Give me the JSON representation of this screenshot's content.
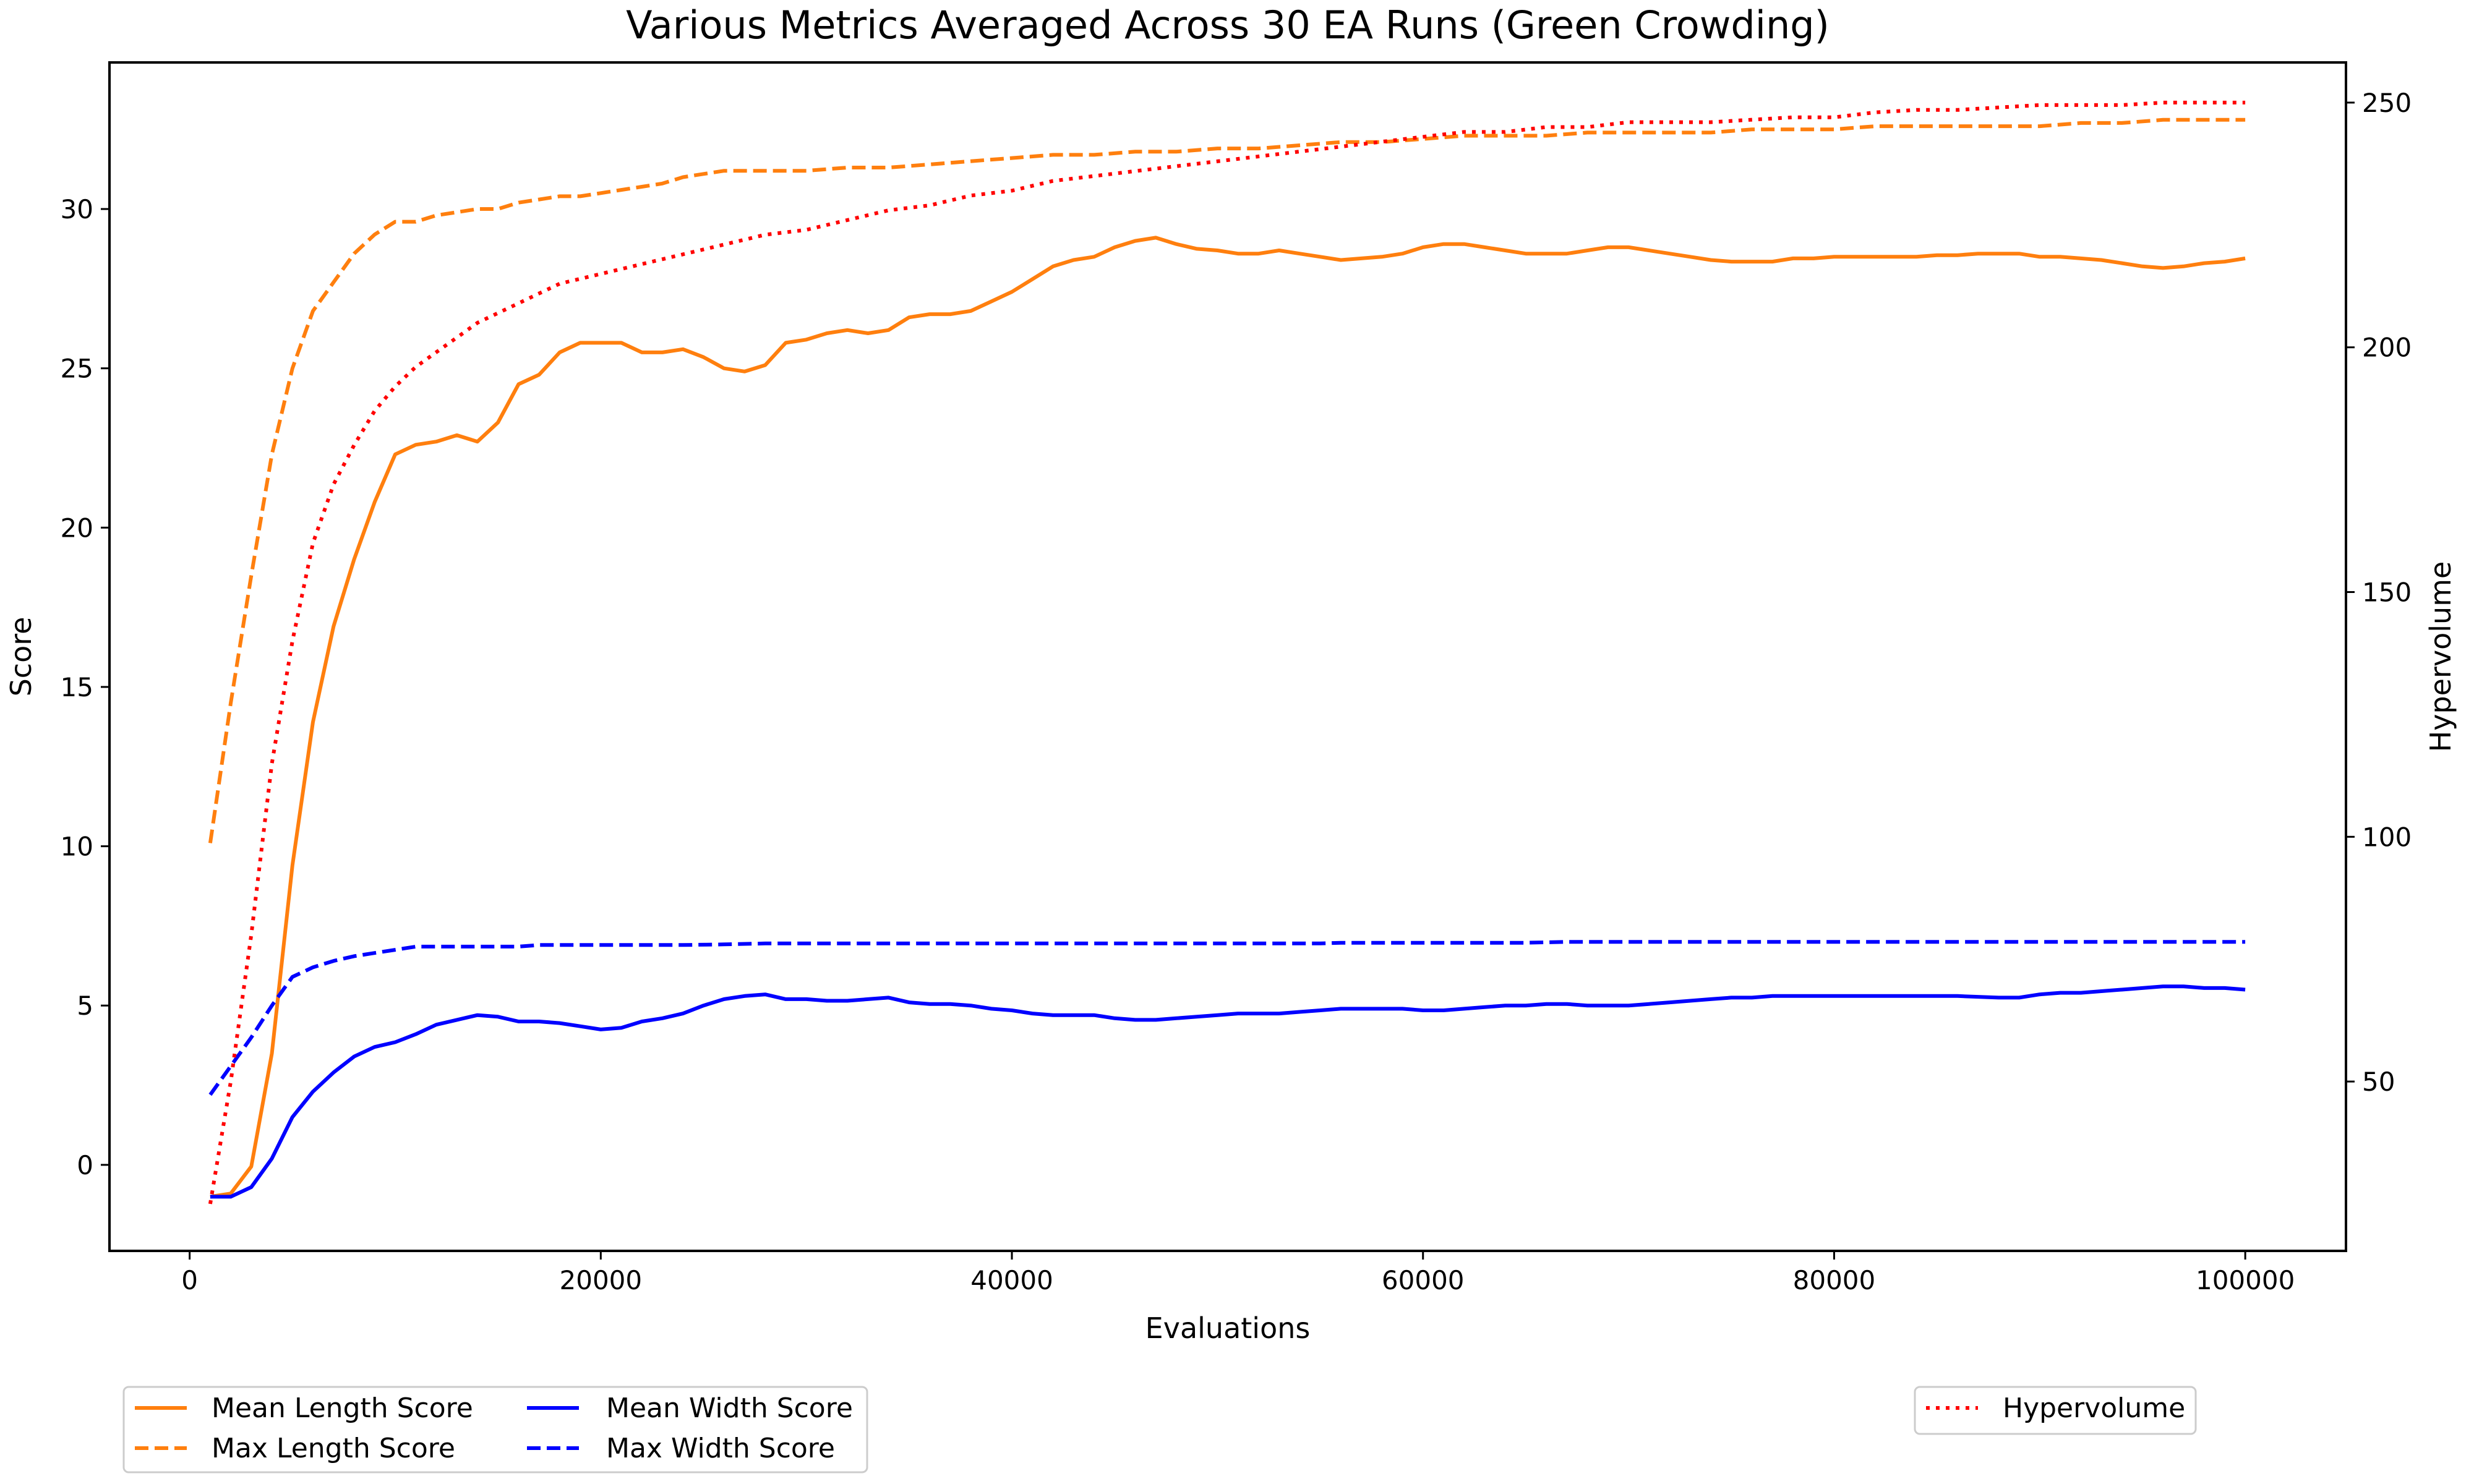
{
  "chart_data": {
    "type": "line",
    "title": "Various Metrics Averaged Across 30 EA Runs (Green Crowding)",
    "xlabel": "Evaluations",
    "ylabel": "Score",
    "y2label": "Hypervolume",
    "xlim": [
      -3900,
      104900
    ],
    "ylim": [
      -2.7,
      34.6
    ],
    "y2lim": [
      15.4,
      258.2
    ],
    "xticks": [
      0,
      20000,
      40000,
      60000,
      80000,
      100000
    ],
    "yticks": [
      0,
      5,
      10,
      15,
      20,
      25,
      30
    ],
    "y2ticks": [
      50,
      100,
      150,
      200,
      250
    ],
    "grid": false,
    "legends": [
      {
        "placement": "lower-left, below axes",
        "entries": [
          "Mean Length Score",
          "Max Length Score",
          "Mean Width Score",
          "Max Width Score"
        ]
      },
      {
        "placement": "lower-right, below axes",
        "entries": [
          "Hypervolume"
        ]
      }
    ],
    "series": [
      {
        "name": "Mean Length Score",
        "axis": "left",
        "color": "#ff7f0e",
        "dash": "solid",
        "x": [
          1000,
          2000,
          3000,
          4000,
          5000,
          6000,
          7000,
          8000,
          9000,
          10000,
          11000,
          12000,
          13000,
          14000,
          15000,
          16000,
          17000,
          18000,
          19000,
          20000,
          21000,
          22000,
          23000,
          24000,
          25000,
          26000,
          27000,
          28000,
          29000,
          30000,
          31000,
          32000,
          33000,
          34000,
          35000,
          36000,
          37000,
          38000,
          39000,
          40000,
          41000,
          42000,
          43000,
          44000,
          45000,
          46000,
          47000,
          48000,
          49000,
          50000,
          51000,
          52000,
          53000,
          54000,
          55000,
          56000,
          57000,
          58000,
          59000,
          60000,
          61000,
          62000,
          63000,
          64000,
          65000,
          66000,
          67000,
          68000,
          69000,
          70000,
          71000,
          72000,
          73000,
          74000,
          75000,
          76000,
          77000,
          78000,
          79000,
          80000,
          81000,
          82000,
          83000,
          84000,
          85000,
          86000,
          87000,
          88000,
          89000,
          90000,
          91000,
          92000,
          93000,
          94000,
          95000,
          96000,
          97000,
          98000,
          99000,
          100000
        ],
        "values": [
          -1.0,
          -0.9,
          -0.05,
          3.5,
          9.4,
          13.9,
          16.9,
          19.0,
          20.8,
          22.3,
          22.6,
          22.7,
          22.9,
          22.7,
          23.3,
          24.5,
          24.8,
          25.5,
          25.8,
          25.8,
          25.8,
          25.5,
          25.5,
          25.6,
          25.35,
          25.0,
          24.9,
          25.1,
          25.8,
          25.9,
          26.1,
          26.2,
          26.1,
          26.2,
          26.6,
          26.7,
          26.7,
          26.8,
          27.1,
          27.4,
          27.8,
          28.2,
          28.4,
          28.5,
          28.8,
          29.0,
          29.1,
          28.9,
          28.75,
          28.7,
          28.6,
          28.6,
          28.7,
          28.6,
          28.5,
          28.4,
          28.45,
          28.5,
          28.6,
          28.8,
          28.9,
          28.9,
          28.8,
          28.7,
          28.6,
          28.6,
          28.6,
          28.7,
          28.8,
          28.8,
          28.7,
          28.6,
          28.5,
          28.4,
          28.35,
          28.35,
          28.35,
          28.45,
          28.45,
          28.5,
          28.5,
          28.5,
          28.5,
          28.5,
          28.55,
          28.55,
          28.6,
          28.6,
          28.6,
          28.5,
          28.5,
          28.45,
          28.4,
          28.3,
          28.2,
          28.15,
          28.2,
          28.3,
          28.35,
          28.45
        ]
      },
      {
        "name": "Max Length Score",
        "axis": "left",
        "color": "#ff7f0e",
        "dash": "dashed",
        "x": [
          1000,
          2000,
          3000,
          4000,
          5000,
          6000,
          7000,
          8000,
          9000,
          10000,
          11000,
          12000,
          13000,
          14000,
          15000,
          16000,
          17000,
          18000,
          19000,
          20000,
          21000,
          22000,
          23000,
          24000,
          25000,
          26000,
          27000,
          28000,
          29000,
          30000,
          32000,
          34000,
          36000,
          38000,
          40000,
          42000,
          44000,
          46000,
          48000,
          50000,
          52000,
          54000,
          56000,
          58000,
          60000,
          62000,
          64000,
          66000,
          68000,
          70000,
          72000,
          74000,
          76000,
          78000,
          80000,
          82000,
          84000,
          86000,
          88000,
          90000,
          92000,
          94000,
          96000,
          98000,
          100000
        ],
        "values": [
          10.1,
          14.5,
          18.5,
          22.3,
          25.0,
          26.8,
          27.7,
          28.6,
          29.2,
          29.6,
          29.6,
          29.8,
          29.9,
          30.0,
          30.0,
          30.2,
          30.3,
          30.4,
          30.4,
          30.5,
          30.6,
          30.7,
          30.8,
          31.0,
          31.1,
          31.2,
          31.2,
          31.2,
          31.2,
          31.2,
          31.3,
          31.3,
          31.4,
          31.5,
          31.6,
          31.7,
          31.7,
          31.8,
          31.8,
          31.9,
          31.9,
          32.0,
          32.1,
          32.1,
          32.2,
          32.3,
          32.3,
          32.3,
          32.4,
          32.4,
          32.4,
          32.4,
          32.5,
          32.5,
          32.5,
          32.6,
          32.6,
          32.6,
          32.6,
          32.6,
          32.7,
          32.7,
          32.8,
          32.8,
          32.8
        ]
      },
      {
        "name": "Mean Width Score",
        "axis": "left",
        "color": "#0000ff",
        "dash": "solid",
        "x": [
          1000,
          2000,
          3000,
          4000,
          5000,
          6000,
          7000,
          8000,
          9000,
          10000,
          11000,
          12000,
          13000,
          14000,
          15000,
          16000,
          17000,
          18000,
          19000,
          20000,
          21000,
          22000,
          23000,
          24000,
          25000,
          26000,
          27000,
          28000,
          29000,
          30000,
          31000,
          32000,
          33000,
          34000,
          35000,
          36000,
          37000,
          38000,
          39000,
          40000,
          41000,
          42000,
          43000,
          44000,
          45000,
          46000,
          47000,
          48000,
          49000,
          50000,
          51000,
          52000,
          53000,
          54000,
          55000,
          56000,
          57000,
          58000,
          59000,
          60000,
          61000,
          62000,
          63000,
          64000,
          65000,
          66000,
          67000,
          68000,
          69000,
          70000,
          71000,
          72000,
          73000,
          74000,
          75000,
          76000,
          77000,
          78000,
          79000,
          80000,
          82000,
          84000,
          86000,
          88000,
          89000,
          90000,
          91000,
          92000,
          93000,
          94000,
          95000,
          96000,
          97000,
          98000,
          99000,
          100000
        ],
        "values": [
          -1.0,
          -1.0,
          -0.7,
          0.2,
          1.5,
          2.3,
          2.9,
          3.4,
          3.7,
          3.85,
          4.1,
          4.4,
          4.55,
          4.7,
          4.65,
          4.5,
          4.5,
          4.45,
          4.35,
          4.25,
          4.3,
          4.5,
          4.6,
          4.75,
          5.0,
          5.2,
          5.3,
          5.35,
          5.2,
          5.2,
          5.15,
          5.15,
          5.2,
          5.25,
          5.1,
          5.05,
          5.05,
          5.0,
          4.9,
          4.85,
          4.75,
          4.7,
          4.7,
          4.7,
          4.6,
          4.55,
          4.55,
          4.6,
          4.65,
          4.7,
          4.75,
          4.75,
          4.75,
          4.8,
          4.85,
          4.9,
          4.9,
          4.9,
          4.9,
          4.85,
          4.85,
          4.9,
          4.95,
          5.0,
          5.0,
          5.05,
          5.05,
          5.0,
          5.0,
          5.0,
          5.05,
          5.1,
          5.15,
          5.2,
          5.25,
          5.25,
          5.3,
          5.3,
          5.3,
          5.3,
          5.3,
          5.3,
          5.3,
          5.25,
          5.25,
          5.35,
          5.4,
          5.4,
          5.45,
          5.5,
          5.55,
          5.6,
          5.6,
          5.55,
          5.55,
          5.5
        ]
      },
      {
        "name": "Max Width Score",
        "axis": "left",
        "color": "#0000ff",
        "dash": "dashed",
        "x": [
          1000,
          2000,
          3000,
          4000,
          5000,
          6000,
          7000,
          8000,
          9000,
          10000,
          11000,
          12000,
          14000,
          16000,
          17000,
          20000,
          22000,
          24000,
          26000,
          28000,
          30000,
          40000,
          50000,
          55000,
          56000,
          60000,
          65000,
          67000,
          70000,
          80000,
          90000,
          100000
        ],
        "values": [
          2.2,
          3.1,
          4.0,
          5.0,
          5.9,
          6.2,
          6.4,
          6.55,
          6.65,
          6.75,
          6.85,
          6.85,
          6.85,
          6.85,
          6.9,
          6.9,
          6.9,
          6.9,
          6.92,
          6.95,
          6.95,
          6.95,
          6.95,
          6.95,
          6.97,
          6.97,
          6.97,
          7.0,
          7.0,
          7.0,
          7.0,
          7.0
        ]
      },
      {
        "name": "Hypervolume",
        "axis": "right",
        "color": "#ff0000",
        "dash": "dotted",
        "x": [
          1000,
          2000,
          3000,
          4000,
          5000,
          6000,
          7000,
          8000,
          9000,
          10000,
          11000,
          12000,
          13000,
          14000,
          15000,
          16000,
          17000,
          18000,
          19000,
          20000,
          22000,
          24000,
          26000,
          28000,
          30000,
          32000,
          34000,
          36000,
          38000,
          40000,
          42000,
          44000,
          46000,
          48000,
          50000,
          52000,
          54000,
          56000,
          58000,
          60000,
          62000,
          64000,
          66000,
          68000,
          70000,
          72000,
          74000,
          76000,
          78000,
          80000,
          82000,
          84000,
          86000,
          88000,
          90000,
          92000,
          94000,
          96000,
          98000,
          100000
        ],
        "values": [
          25,
          50,
          80,
          115,
          140,
          160,
          172,
          180,
          187,
          192,
          196,
          199,
          202,
          205,
          207,
          209,
          211,
          213,
          214,
          215,
          217,
          219,
          221,
          223,
          224,
          226,
          228,
          229,
          231,
          232,
          234,
          235,
          236,
          237,
          238,
          239,
          240,
          241,
          242,
          243,
          244,
          244,
          245,
          245,
          246,
          246,
          246,
          246.5,
          247,
          247,
          248,
          248.5,
          248.5,
          249,
          249.5,
          249.5,
          249.5,
          250,
          250,
          250
        ]
      }
    ]
  }
}
